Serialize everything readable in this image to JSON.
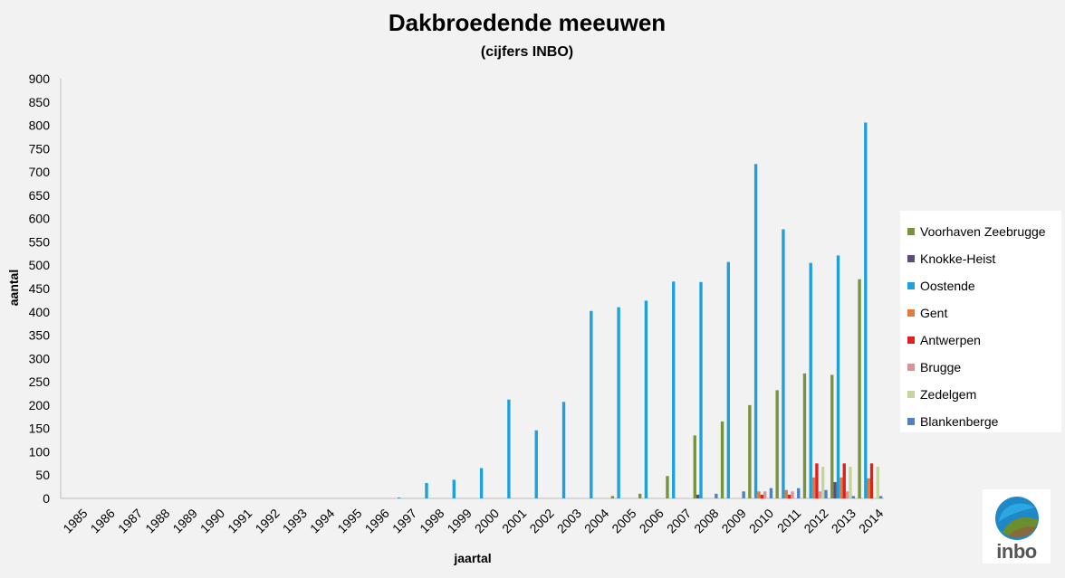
{
  "chart_data": {
    "type": "bar",
    "title": "Dakbroedende meeuwen",
    "subtitle": "(cijfers INBO)",
    "xlabel": "jaartal",
    "ylabel": "aantal",
    "ylim": [
      0,
      900
    ],
    "yticks": [
      0,
      50,
      100,
      150,
      200,
      250,
      300,
      350,
      400,
      450,
      500,
      550,
      600,
      650,
      700,
      750,
      800,
      850,
      900
    ],
    "grid": false,
    "legend_position": "right",
    "categories": [
      "1985",
      "1986",
      "1987",
      "1988",
      "1989",
      "1990",
      "1991",
      "1992",
      "1993",
      "1994",
      "1995",
      "1996",
      "1997",
      "1998",
      "1999",
      "2000",
      "2001",
      "2002",
      "2003",
      "2004",
      "2005",
      "2006",
      "2007",
      "2008",
      "2009",
      "2010",
      "2011",
      "2012",
      "2013",
      "2014"
    ],
    "series": [
      {
        "name": "Voorhaven Zeebrugge",
        "color": "#77933c",
        "values": [
          0,
          0,
          0,
          0,
          0,
          0,
          0,
          0,
          0,
          0,
          0,
          0,
          0,
          0,
          0,
          0,
          0,
          0,
          0,
          0,
          5,
          10,
          48,
          135,
          165,
          200,
          232,
          268,
          265,
          470
        ]
      },
      {
        "name": "Knokke-Heist",
        "color": "#604a7b",
        "values": [
          0,
          0,
          0,
          0,
          0,
          0,
          0,
          0,
          0,
          0,
          0,
          0,
          0,
          0,
          0,
          0,
          0,
          0,
          0,
          0,
          0,
          0,
          0,
          8,
          0,
          0,
          0,
          0,
          35,
          0
        ]
      },
      {
        "name": "Oostende",
        "color": "#1ea0dc",
        "values": [
          0,
          0,
          0,
          0,
          0,
          0,
          0,
          0,
          0,
          0,
          0,
          0,
          2,
          33,
          40,
          65,
          212,
          146,
          207,
          402,
          410,
          424,
          465,
          464,
          507,
          717,
          577,
          505,
          521,
          806
        ]
      },
      {
        "name": "Gent",
        "color": "#e27b3a",
        "values": [
          0,
          0,
          0,
          0,
          0,
          0,
          0,
          0,
          0,
          0,
          0,
          0,
          0,
          0,
          0,
          0,
          0,
          0,
          0,
          0,
          0,
          0,
          0,
          0,
          0,
          15,
          18,
          45,
          45,
          43
        ]
      },
      {
        "name": "Antwerpen",
        "color": "#e02020",
        "values": [
          0,
          0,
          0,
          0,
          0,
          0,
          0,
          0,
          0,
          0,
          0,
          0,
          0,
          0,
          0,
          0,
          0,
          0,
          0,
          0,
          0,
          0,
          0,
          0,
          0,
          8,
          8,
          75,
          75,
          75
        ]
      },
      {
        "name": "Brugge",
        "color": "#d99594",
        "values": [
          0,
          0,
          0,
          0,
          0,
          0,
          0,
          0,
          0,
          0,
          0,
          0,
          0,
          0,
          0,
          0,
          0,
          0,
          0,
          0,
          0,
          0,
          0,
          0,
          0,
          15,
          15,
          15,
          15,
          0
        ]
      },
      {
        "name": "Zedelgem",
        "color": "#c3d69b",
        "values": [
          0,
          0,
          0,
          0,
          0,
          0,
          0,
          0,
          0,
          0,
          0,
          0,
          0,
          0,
          0,
          0,
          0,
          0,
          0,
          0,
          0,
          0,
          0,
          0,
          0,
          0,
          0,
          68,
          68,
          68
        ]
      },
      {
        "name": "Blankenberge",
        "color": "#4f81bd",
        "values": [
          0,
          0,
          0,
          0,
          0,
          0,
          0,
          0,
          0,
          0,
          0,
          0,
          0,
          0,
          0,
          0,
          0,
          0,
          0,
          0,
          0,
          0,
          0,
          10,
          15,
          22,
          22,
          18,
          5,
          5
        ]
      }
    ]
  },
  "logo": {
    "text": "inbo"
  }
}
